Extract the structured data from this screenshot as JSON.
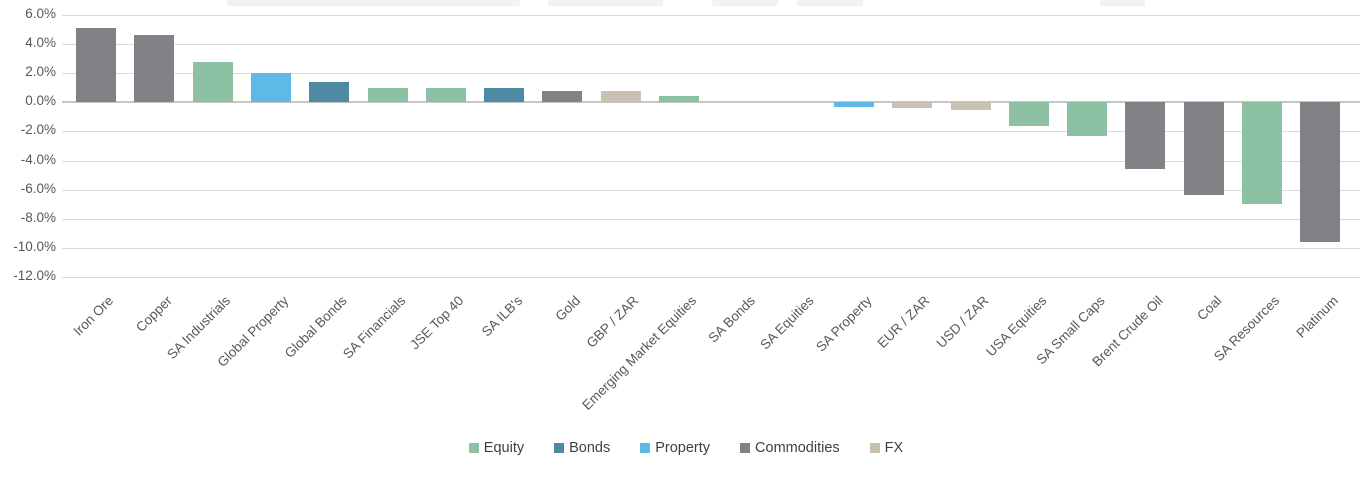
{
  "chart_data": {
    "type": "bar",
    "title": "",
    "xlabel": "",
    "ylabel": "",
    "ylim": [
      -12,
      6
    ],
    "grid": true,
    "legend_position": "bottom",
    "ytick_labels": [
      "6.0%",
      "4.0%",
      "2.0%",
      "0.0%",
      "-2.0%",
      "-4.0%",
      "-6.0%",
      "-8.0%",
      "-10.0%",
      "-12.0%"
    ],
    "ytick_values": [
      6,
      4,
      2,
      0,
      -2,
      -4,
      -6,
      -8,
      -10,
      -12
    ],
    "categories": [
      "Iron Ore",
      "Copper",
      "SA Industrials",
      "Global Property",
      "Global Bonds",
      "SA Financials",
      "JSE Top 40",
      "SA ILB's",
      "Gold",
      "GBP / ZAR",
      "Emerging Market Equities",
      "SA Bonds",
      "SA Equities",
      "SA Property",
      "EUR / ZAR",
      "USD / ZAR",
      "USA Equities",
      "SA Small Caps",
      "Brent Crude Oil",
      "Coal",
      "SA Resources",
      "Platinum"
    ],
    "values": [
      5.1,
      4.6,
      2.8,
      2.0,
      1.4,
      1.0,
      1.0,
      1.0,
      0.8,
      0.8,
      0.45,
      0.0,
      0.0,
      -0.3,
      -0.4,
      -0.5,
      -1.6,
      -2.3,
      -4.6,
      -6.4,
      -7.0,
      -9.6
    ],
    "asset_classes": [
      "Commodities",
      "Commodities",
      "Equity",
      "Property",
      "Bonds",
      "Equity",
      "Equity",
      "Bonds",
      "Commodities",
      "FX",
      "Equity",
      "Bonds",
      "Equity",
      "Property",
      "FX",
      "FX",
      "Equity",
      "Equity",
      "Commodities",
      "Commodities",
      "Equity",
      "Commodities"
    ],
    "legend": [
      "Equity",
      "Bonds",
      "Property",
      "Commodities",
      "FX"
    ],
    "class_colors": {
      "Equity": "#8CC2A3",
      "Bonds": "#4F8AA5",
      "Property": "#5EB9E4",
      "Commodities": "#808285",
      "FX": "#C9C1B2"
    }
  },
  "colors": {
    "gridline": "#D9D9D9",
    "zero_line": "#C6C6C6",
    "tick_text": "#595959",
    "legend_text": "#404040"
  }
}
